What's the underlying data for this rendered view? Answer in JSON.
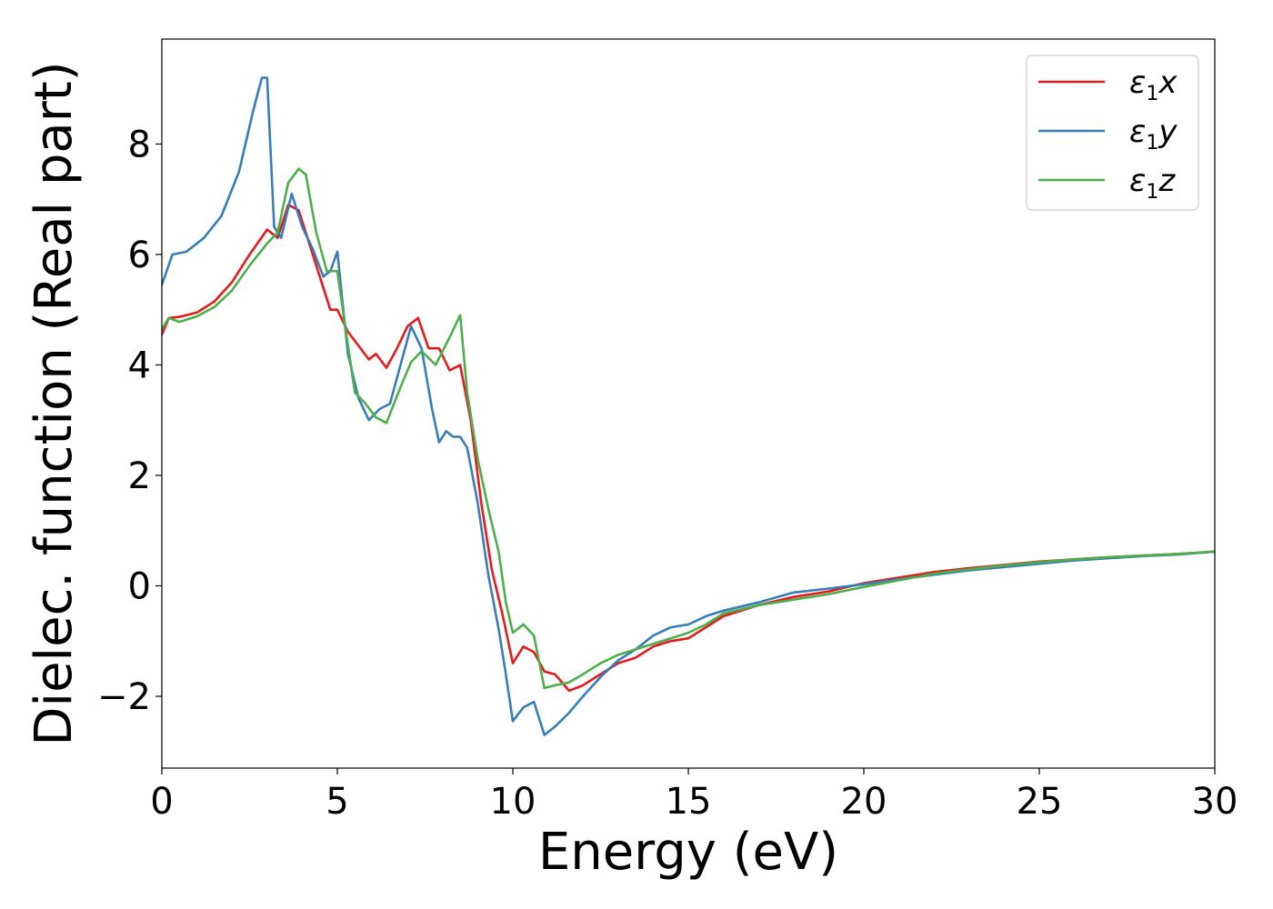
{
  "chart_data": {
    "type": "line",
    "title": "",
    "xlabel": "Energy (eV)",
    "ylabel": "Dielec. function (Real part)",
    "xlim": [
      0,
      30
    ],
    "ylim": [
      -3.3,
      9.9
    ],
    "xticks": [
      0,
      5,
      10,
      15,
      20,
      25,
      30
    ],
    "yticks": [
      -2,
      0,
      2,
      4,
      6,
      8
    ],
    "xtick_labels": [
      "0",
      "5",
      "10",
      "15",
      "20",
      "25",
      "30"
    ],
    "ytick_labels": [
      "−2",
      "0",
      "2",
      "4",
      "6",
      "8"
    ],
    "grid": false,
    "legend_position": "top-right",
    "series": [
      {
        "name": "ε1x",
        "legend_base": "ε",
        "legend_sub": "1",
        "legend_var": "x",
        "color": "#e41a1c",
        "x": [
          0,
          0.2,
          0.5,
          1.0,
          1.5,
          2.0,
          2.5,
          3.0,
          3.3,
          3.6,
          3.9,
          4.2,
          4.5,
          4.8,
          5.0,
          5.3,
          5.6,
          5.9,
          6.1,
          6.4,
          6.7,
          7.0,
          7.3,
          7.6,
          7.9,
          8.2,
          8.5,
          8.8,
          9.1,
          9.4,
          9.7,
          10.0,
          10.3,
          10.6,
          10.9,
          11.2,
          11.6,
          12.0,
          12.5,
          13.0,
          13.5,
          14.0,
          14.5,
          15.0,
          15.5,
          16.0,
          17.0,
          18.0,
          19.0,
          20.0,
          21.0,
          22.0,
          23.0,
          24.0,
          25.0,
          26.0,
          27.0,
          28.0,
          29.0,
          30.0
        ],
        "y": [
          4.55,
          4.85,
          4.87,
          4.95,
          5.15,
          5.5,
          6.0,
          6.45,
          6.3,
          6.9,
          6.8,
          6.2,
          5.6,
          5.0,
          5.0,
          4.6,
          4.35,
          4.1,
          4.2,
          3.95,
          4.3,
          4.7,
          4.85,
          4.3,
          4.3,
          3.9,
          4.0,
          3.0,
          1.5,
          0.3,
          -0.5,
          -1.4,
          -1.1,
          -1.2,
          -1.55,
          -1.6,
          -1.9,
          -1.8,
          -1.6,
          -1.4,
          -1.3,
          -1.1,
          -1.0,
          -0.95,
          -0.75,
          -0.55,
          -0.35,
          -0.2,
          -0.1,
          0.05,
          0.15,
          0.25,
          0.32,
          0.38,
          0.44,
          0.48,
          0.52,
          0.55,
          0.58,
          0.62
        ]
      },
      {
        "name": "ε1y",
        "legend_base": "ε",
        "legend_sub": "1",
        "legend_var": "y",
        "color": "#377eb8",
        "x": [
          0,
          0.3,
          0.7,
          1.2,
          1.7,
          2.2,
          2.6,
          2.85,
          3.0,
          3.2,
          3.4,
          3.7,
          4.0,
          4.3,
          4.6,
          4.8,
          5.0,
          5.3,
          5.6,
          5.9,
          6.2,
          6.5,
          6.8,
          7.1,
          7.4,
          7.7,
          7.9,
          8.1,
          8.3,
          8.5,
          8.7,
          9.0,
          9.3,
          9.6,
          9.8,
          10.0,
          10.3,
          10.6,
          10.9,
          11.2,
          11.6,
          12.0,
          12.5,
          13.0,
          13.5,
          14.0,
          14.5,
          15.0,
          15.5,
          16.0,
          17.0,
          18.0,
          19.0,
          20.0,
          21.0,
          22.0,
          23.0,
          24.0,
          25.0,
          26.0,
          27.0,
          28.0,
          29.0,
          30.0
        ],
        "y": [
          5.45,
          6.0,
          6.05,
          6.3,
          6.7,
          7.5,
          8.6,
          9.2,
          9.2,
          6.5,
          6.3,
          7.1,
          6.5,
          6.1,
          5.6,
          5.7,
          6.05,
          4.2,
          3.4,
          3.0,
          3.2,
          3.3,
          4.0,
          4.7,
          4.3,
          3.2,
          2.6,
          2.8,
          2.7,
          2.7,
          2.5,
          1.5,
          0.2,
          -0.8,
          -1.6,
          -2.45,
          -2.2,
          -2.1,
          -2.7,
          -2.55,
          -2.3,
          -2.0,
          -1.65,
          -1.35,
          -1.15,
          -0.9,
          -0.75,
          -0.7,
          -0.55,
          -0.45,
          -0.3,
          -0.12,
          -0.05,
          0.03,
          0.12,
          0.2,
          0.28,
          0.34,
          0.4,
          0.46,
          0.5,
          0.54,
          0.57,
          0.62
        ]
      },
      {
        "name": "ε1z",
        "legend_base": "ε",
        "legend_sub": "1",
        "legend_var": "z",
        "color": "#4daf4a",
        "x": [
          0,
          0.2,
          0.5,
          1.0,
          1.5,
          2.0,
          2.5,
          3.0,
          3.3,
          3.6,
          3.9,
          4.1,
          4.4,
          4.7,
          5.0,
          5.2,
          5.5,
          5.8,
          6.1,
          6.4,
          6.8,
          7.1,
          7.4,
          7.8,
          8.2,
          8.5,
          8.7,
          9.0,
          9.3,
          9.6,
          9.8,
          10.0,
          10.3,
          10.6,
          10.9,
          11.2,
          11.6,
          12.0,
          12.5,
          13.0,
          13.5,
          14.0,
          14.5,
          15.0,
          15.5,
          16.0,
          17.0,
          18.0,
          19.0,
          20.0,
          21.0,
          22.0,
          23.0,
          24.0,
          25.0,
          26.0,
          27.0,
          28.0,
          29.0,
          30.0
        ],
        "y": [
          4.65,
          4.85,
          4.78,
          4.88,
          5.05,
          5.35,
          5.8,
          6.2,
          6.4,
          7.3,
          7.55,
          7.45,
          6.4,
          5.7,
          5.7,
          4.8,
          3.5,
          3.3,
          3.05,
          2.95,
          3.6,
          4.05,
          4.25,
          4.0,
          4.5,
          4.9,
          3.5,
          2.3,
          1.4,
          0.6,
          -0.3,
          -0.85,
          -0.7,
          -0.9,
          -1.85,
          -1.8,
          -1.75,
          -1.6,
          -1.4,
          -1.25,
          -1.15,
          -1.05,
          -0.95,
          -0.85,
          -0.7,
          -0.5,
          -0.35,
          -0.25,
          -0.15,
          -0.02,
          0.1,
          0.22,
          0.3,
          0.37,
          0.43,
          0.48,
          0.52,
          0.55,
          0.58,
          0.62
        ]
      }
    ]
  }
}
